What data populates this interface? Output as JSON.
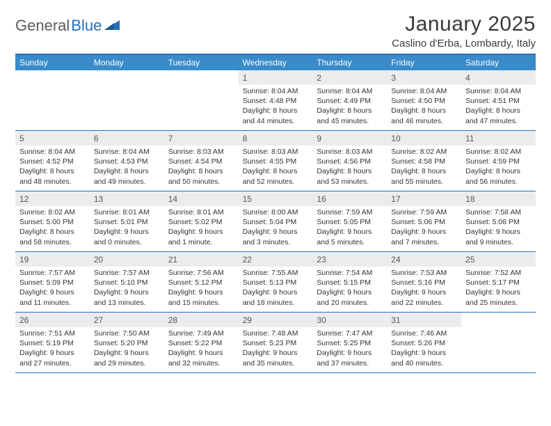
{
  "logo": {
    "text_general": "General",
    "text_blue": "Blue"
  },
  "title": "January 2025",
  "location": "Caslino d'Erba, Lombardy, Italy",
  "colors": {
    "header_bar": "#3a8bc9",
    "border": "#2570b8",
    "daynum_bg": "#ebecee",
    "text": "#333333",
    "logo_gray": "#5a5a5a",
    "logo_blue": "#2570b8",
    "background": "#ffffff"
  },
  "typography": {
    "month_title_pt": 30,
    "location_pt": 15,
    "day_header_pt": 12,
    "daynum_pt": 12,
    "body_pt": 10.5
  },
  "day_names": [
    "Sunday",
    "Monday",
    "Tuesday",
    "Wednesday",
    "Thursday",
    "Friday",
    "Saturday"
  ],
  "weeks": [
    [
      {
        "empty": true
      },
      {
        "empty": true
      },
      {
        "empty": true
      },
      {
        "day": "1",
        "sunrise": "Sunrise: 8:04 AM",
        "sunset": "Sunset: 4:48 PM",
        "daylight1": "Daylight: 8 hours",
        "daylight2": "and 44 minutes."
      },
      {
        "day": "2",
        "sunrise": "Sunrise: 8:04 AM",
        "sunset": "Sunset: 4:49 PM",
        "daylight1": "Daylight: 8 hours",
        "daylight2": "and 45 minutes."
      },
      {
        "day": "3",
        "sunrise": "Sunrise: 8:04 AM",
        "sunset": "Sunset: 4:50 PM",
        "daylight1": "Daylight: 8 hours",
        "daylight2": "and 46 minutes."
      },
      {
        "day": "4",
        "sunrise": "Sunrise: 8:04 AM",
        "sunset": "Sunset: 4:51 PM",
        "daylight1": "Daylight: 8 hours",
        "daylight2": "and 47 minutes."
      }
    ],
    [
      {
        "day": "5",
        "sunrise": "Sunrise: 8:04 AM",
        "sunset": "Sunset: 4:52 PM",
        "daylight1": "Daylight: 8 hours",
        "daylight2": "and 48 minutes."
      },
      {
        "day": "6",
        "sunrise": "Sunrise: 8:04 AM",
        "sunset": "Sunset: 4:53 PM",
        "daylight1": "Daylight: 8 hours",
        "daylight2": "and 49 minutes."
      },
      {
        "day": "7",
        "sunrise": "Sunrise: 8:03 AM",
        "sunset": "Sunset: 4:54 PM",
        "daylight1": "Daylight: 8 hours",
        "daylight2": "and 50 minutes."
      },
      {
        "day": "8",
        "sunrise": "Sunrise: 8:03 AM",
        "sunset": "Sunset: 4:55 PM",
        "daylight1": "Daylight: 8 hours",
        "daylight2": "and 52 minutes."
      },
      {
        "day": "9",
        "sunrise": "Sunrise: 8:03 AM",
        "sunset": "Sunset: 4:56 PM",
        "daylight1": "Daylight: 8 hours",
        "daylight2": "and 53 minutes."
      },
      {
        "day": "10",
        "sunrise": "Sunrise: 8:02 AM",
        "sunset": "Sunset: 4:58 PM",
        "daylight1": "Daylight: 8 hours",
        "daylight2": "and 55 minutes."
      },
      {
        "day": "11",
        "sunrise": "Sunrise: 8:02 AM",
        "sunset": "Sunset: 4:59 PM",
        "daylight1": "Daylight: 8 hours",
        "daylight2": "and 56 minutes."
      }
    ],
    [
      {
        "day": "12",
        "sunrise": "Sunrise: 8:02 AM",
        "sunset": "Sunset: 5:00 PM",
        "daylight1": "Daylight: 8 hours",
        "daylight2": "and 58 minutes."
      },
      {
        "day": "13",
        "sunrise": "Sunrise: 8:01 AM",
        "sunset": "Sunset: 5:01 PM",
        "daylight1": "Daylight: 9 hours",
        "daylight2": "and 0 minutes."
      },
      {
        "day": "14",
        "sunrise": "Sunrise: 8:01 AM",
        "sunset": "Sunset: 5:02 PM",
        "daylight1": "Daylight: 9 hours",
        "daylight2": "and 1 minute."
      },
      {
        "day": "15",
        "sunrise": "Sunrise: 8:00 AM",
        "sunset": "Sunset: 5:04 PM",
        "daylight1": "Daylight: 9 hours",
        "daylight2": "and 3 minutes."
      },
      {
        "day": "16",
        "sunrise": "Sunrise: 7:59 AM",
        "sunset": "Sunset: 5:05 PM",
        "daylight1": "Daylight: 9 hours",
        "daylight2": "and 5 minutes."
      },
      {
        "day": "17",
        "sunrise": "Sunrise: 7:59 AM",
        "sunset": "Sunset: 5:06 PM",
        "daylight1": "Daylight: 9 hours",
        "daylight2": "and 7 minutes."
      },
      {
        "day": "18",
        "sunrise": "Sunrise: 7:58 AM",
        "sunset": "Sunset: 5:08 PM",
        "daylight1": "Daylight: 9 hours",
        "daylight2": "and 9 minutes."
      }
    ],
    [
      {
        "day": "19",
        "sunrise": "Sunrise: 7:57 AM",
        "sunset": "Sunset: 5:09 PM",
        "daylight1": "Daylight: 9 hours",
        "daylight2": "and 11 minutes."
      },
      {
        "day": "20",
        "sunrise": "Sunrise: 7:57 AM",
        "sunset": "Sunset: 5:10 PM",
        "daylight1": "Daylight: 9 hours",
        "daylight2": "and 13 minutes."
      },
      {
        "day": "21",
        "sunrise": "Sunrise: 7:56 AM",
        "sunset": "Sunset: 5:12 PM",
        "daylight1": "Daylight: 9 hours",
        "daylight2": "and 15 minutes."
      },
      {
        "day": "22",
        "sunrise": "Sunrise: 7:55 AM",
        "sunset": "Sunset: 5:13 PM",
        "daylight1": "Daylight: 9 hours",
        "daylight2": "and 18 minutes."
      },
      {
        "day": "23",
        "sunrise": "Sunrise: 7:54 AM",
        "sunset": "Sunset: 5:15 PM",
        "daylight1": "Daylight: 9 hours",
        "daylight2": "and 20 minutes."
      },
      {
        "day": "24",
        "sunrise": "Sunrise: 7:53 AM",
        "sunset": "Sunset: 5:16 PM",
        "daylight1": "Daylight: 9 hours",
        "daylight2": "and 22 minutes."
      },
      {
        "day": "25",
        "sunrise": "Sunrise: 7:52 AM",
        "sunset": "Sunset: 5:17 PM",
        "daylight1": "Daylight: 9 hours",
        "daylight2": "and 25 minutes."
      }
    ],
    [
      {
        "day": "26",
        "sunrise": "Sunrise: 7:51 AM",
        "sunset": "Sunset: 5:19 PM",
        "daylight1": "Daylight: 9 hours",
        "daylight2": "and 27 minutes."
      },
      {
        "day": "27",
        "sunrise": "Sunrise: 7:50 AM",
        "sunset": "Sunset: 5:20 PM",
        "daylight1": "Daylight: 9 hours",
        "daylight2": "and 29 minutes."
      },
      {
        "day": "28",
        "sunrise": "Sunrise: 7:49 AM",
        "sunset": "Sunset: 5:22 PM",
        "daylight1": "Daylight: 9 hours",
        "daylight2": "and 32 minutes."
      },
      {
        "day": "29",
        "sunrise": "Sunrise: 7:48 AM",
        "sunset": "Sunset: 5:23 PM",
        "daylight1": "Daylight: 9 hours",
        "daylight2": "and 35 minutes."
      },
      {
        "day": "30",
        "sunrise": "Sunrise: 7:47 AM",
        "sunset": "Sunset: 5:25 PM",
        "daylight1": "Daylight: 9 hours",
        "daylight2": "and 37 minutes."
      },
      {
        "day": "31",
        "sunrise": "Sunrise: 7:46 AM",
        "sunset": "Sunset: 5:26 PM",
        "daylight1": "Daylight: 9 hours",
        "daylight2": "and 40 minutes."
      },
      {
        "empty": true
      }
    ]
  ]
}
